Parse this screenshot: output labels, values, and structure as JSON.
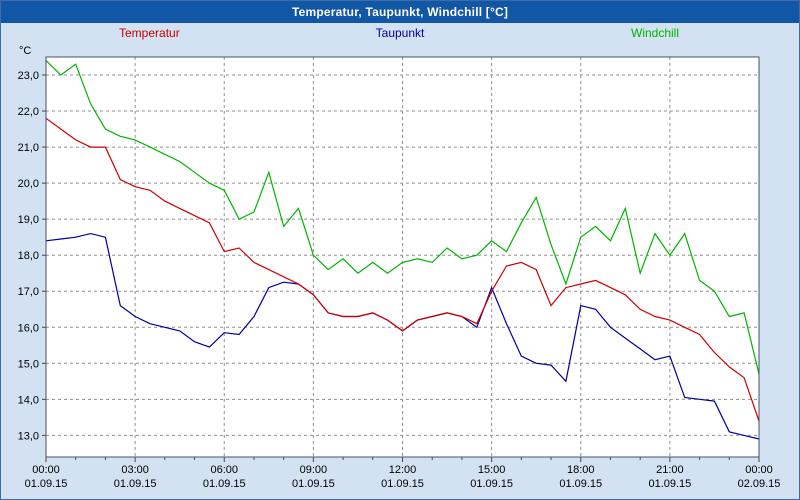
{
  "title_bar": {
    "title": "Temperatur, Taupunkt, Windchill [°C]"
  },
  "chart_data": {
    "type": "line",
    "title": "Temperatur, Taupunkt, Windchill [°C]",
    "ylabel": "°C",
    "xlabel": "",
    "grid": true,
    "legend_position": "top",
    "xlim": [
      0,
      24
    ],
    "ylim": [
      12.4,
      23.5
    ],
    "x_unit": "hours",
    "x": [
      0,
      0.5,
      1,
      1.5,
      2,
      2.5,
      3,
      3.5,
      4,
      4.5,
      5,
      5.5,
      6,
      6.5,
      7,
      7.5,
      8,
      8.5,
      9,
      9.5,
      10,
      10.5,
      11,
      11.5,
      12,
      12.5,
      13,
      13.5,
      14,
      14.5,
      15,
      15.5,
      16,
      16.5,
      17,
      17.5,
      18,
      18.5,
      19,
      19.5,
      20,
      20.5,
      21,
      21.5,
      22,
      22.5,
      23,
      23.5,
      24
    ],
    "series": [
      {
        "name": "Temperatur",
        "color": "#cc0000",
        "values": [
          21.8,
          21.5,
          21.2,
          21.0,
          21.0,
          20.1,
          19.9,
          19.8,
          19.5,
          19.3,
          19.1,
          18.9,
          18.1,
          18.2,
          17.8,
          17.6,
          17.4,
          17.2,
          16.9,
          16.4,
          16.3,
          16.3,
          16.4,
          16.2,
          15.9,
          16.2,
          16.3,
          16.4,
          16.3,
          16.1,
          17.0,
          17.7,
          17.8,
          17.6,
          16.6,
          17.1,
          17.2,
          17.3,
          17.1,
          16.9,
          16.5,
          16.3,
          16.2,
          16.0,
          15.8,
          15.3,
          14.9,
          14.6,
          13.4
        ]
      },
      {
        "name": "Taupunkt",
        "color": "#000099",
        "values": [
          18.4,
          18.45,
          18.5,
          18.6,
          18.5,
          16.6,
          16.3,
          16.1,
          16.0,
          15.9,
          15.6,
          15.45,
          15.85,
          15.8,
          16.3,
          17.1,
          17.25,
          17.2,
          16.9,
          16.4,
          16.3,
          16.3,
          16.4,
          16.2,
          15.9,
          16.2,
          16.3,
          16.4,
          16.3,
          16.0,
          17.1,
          16.1,
          15.2,
          15.0,
          14.95,
          14.5,
          16.6,
          16.5,
          16.0,
          15.7,
          15.4,
          15.1,
          15.2,
          14.05,
          14.0,
          13.95,
          13.1,
          13.0,
          12.9
        ]
      },
      {
        "name": "Windchill",
        "color": "#00b400",
        "values": [
          23.4,
          23.0,
          23.3,
          22.2,
          21.5,
          21.3,
          21.2,
          21.0,
          20.8,
          20.6,
          20.3,
          20.0,
          19.8,
          19.0,
          19.2,
          20.3,
          18.8,
          19.3,
          18.0,
          17.6,
          17.9,
          17.5,
          17.8,
          17.5,
          17.8,
          17.9,
          17.8,
          18.2,
          17.9,
          18.0,
          18.4,
          18.1,
          18.9,
          19.6,
          18.3,
          17.2,
          18.5,
          18.8,
          18.4,
          19.3,
          17.5,
          18.6,
          18.0,
          18.6,
          17.3,
          17.0,
          16.3,
          16.4,
          14.7
        ]
      }
    ],
    "x_ticks": [
      {
        "hour": 0,
        "time": "00:00",
        "date": "01.09.15"
      },
      {
        "hour": 3,
        "time": "03:00",
        "date": "01.09.15"
      },
      {
        "hour": 6,
        "time": "06:00",
        "date": "01.09.15"
      },
      {
        "hour": 9,
        "time": "09:00",
        "date": "01.09.15"
      },
      {
        "hour": 12,
        "time": "12:00",
        "date": "01.09.15"
      },
      {
        "hour": 15,
        "time": "15:00",
        "date": "01.09.15"
      },
      {
        "hour": 18,
        "time": "18:00",
        "date": "01.09.15"
      },
      {
        "hour": 21,
        "time": "21:00",
        "date": "01.09.15"
      },
      {
        "hour": 24,
        "time": "00:00",
        "date": "02.09.15"
      }
    ],
    "y_ticks": [
      {
        "value": 23,
        "label": "23,0"
      },
      {
        "value": 22,
        "label": "22,0"
      },
      {
        "value": 21,
        "label": "21,0"
      },
      {
        "value": 20,
        "label": "20,0"
      },
      {
        "value": 19,
        "label": "19,0"
      },
      {
        "value": 18,
        "label": "18,0"
      },
      {
        "value": 17,
        "label": "17,0"
      },
      {
        "value": 16,
        "label": "16,0"
      },
      {
        "value": 15,
        "label": "15,0"
      },
      {
        "value": 14,
        "label": "14,0"
      },
      {
        "value": 13,
        "label": "13,0"
      }
    ]
  }
}
